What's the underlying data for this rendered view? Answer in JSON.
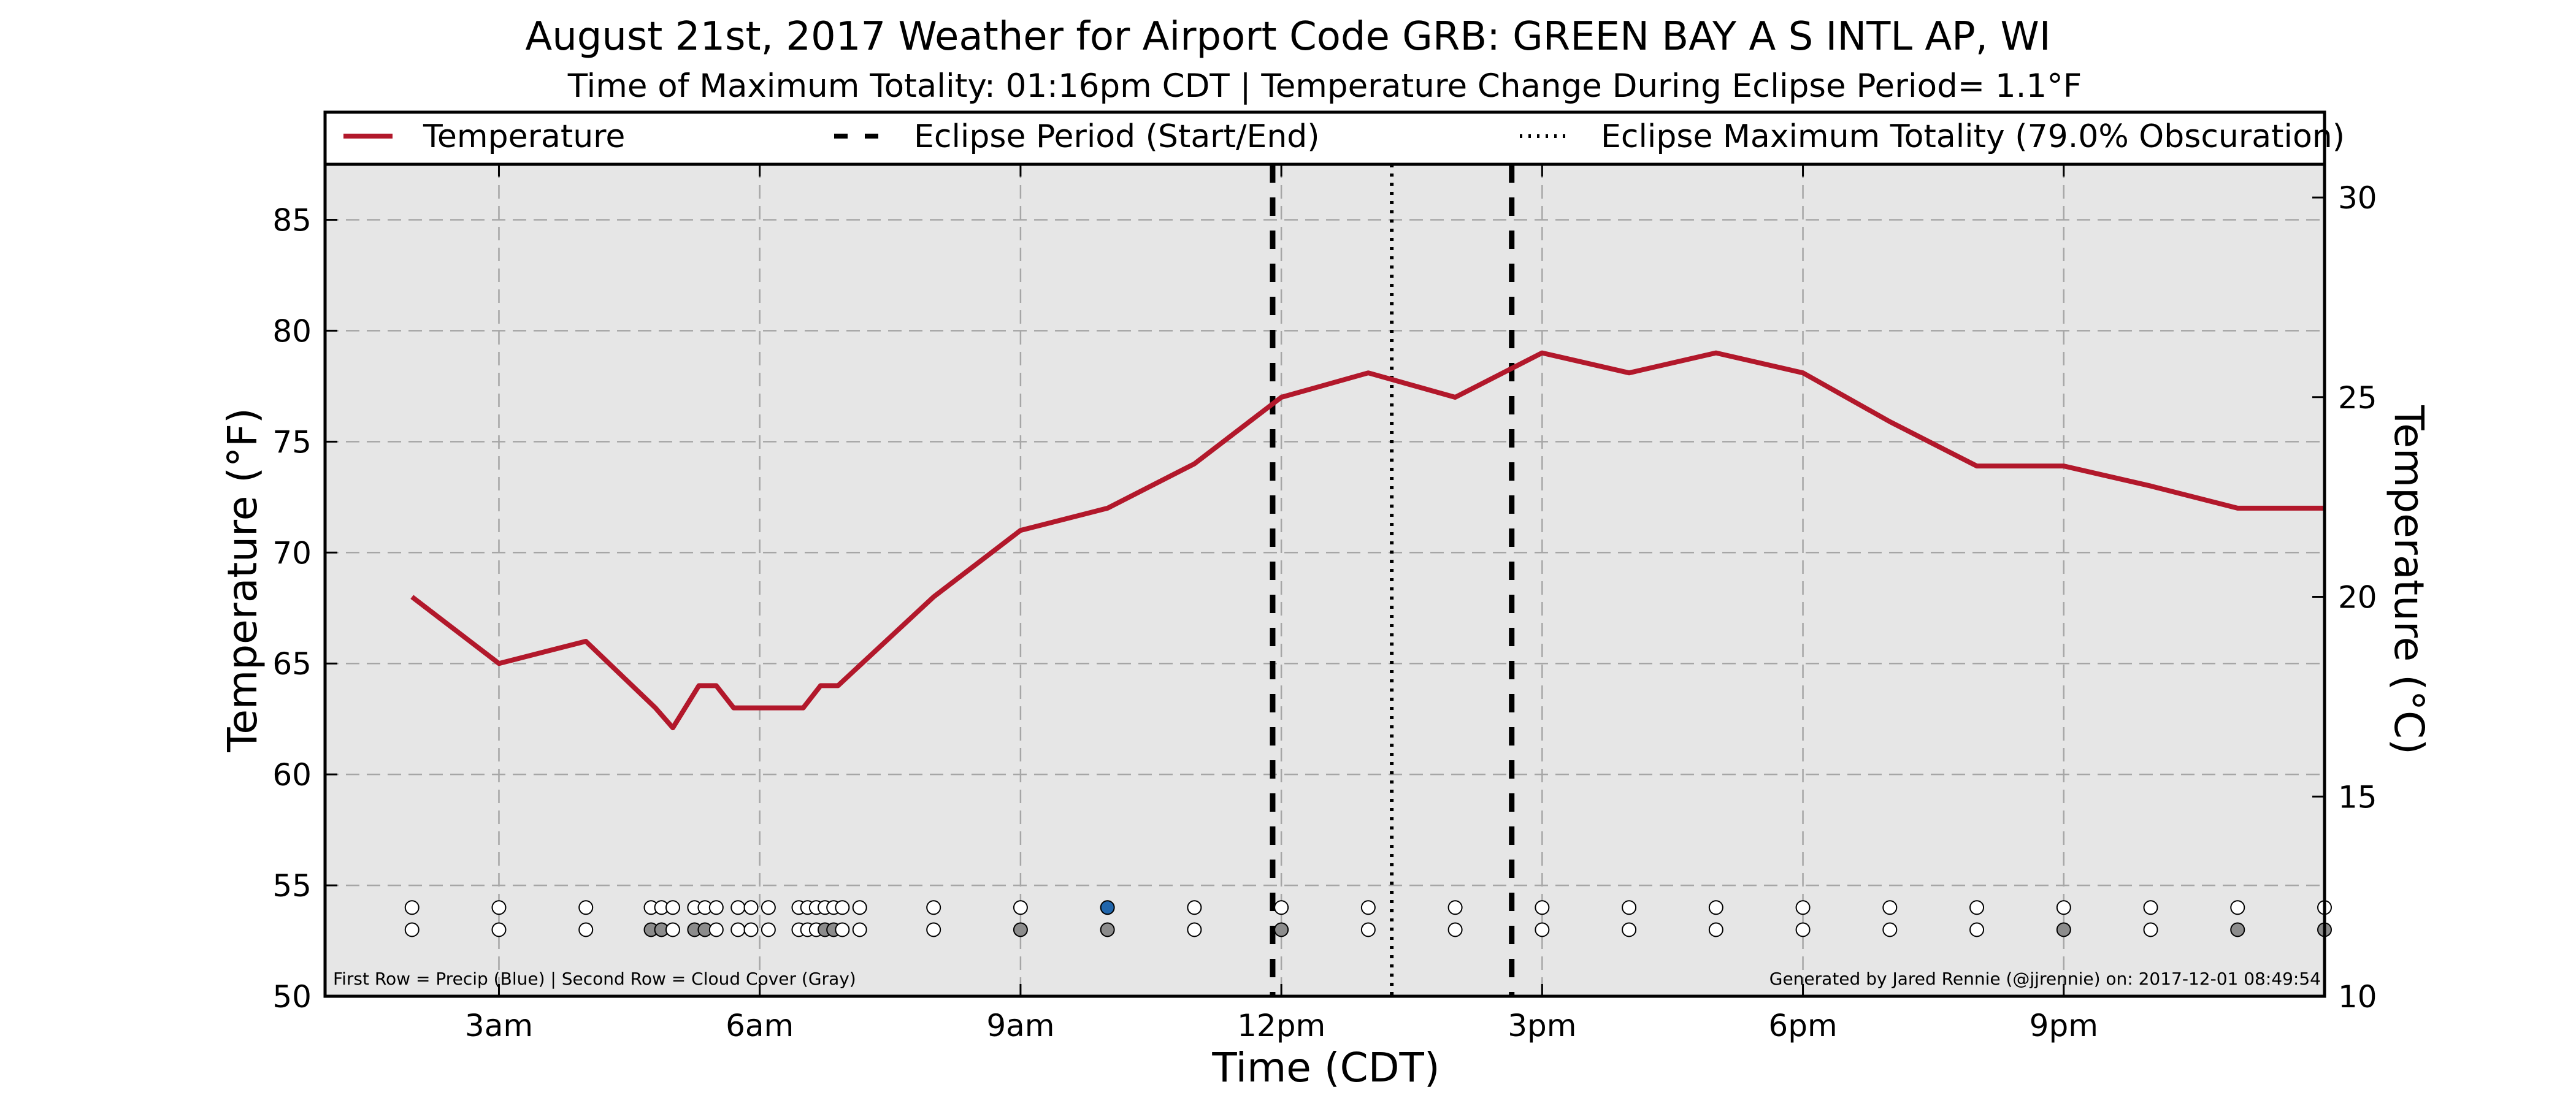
{
  "chart_data": {
    "type": "line",
    "title": "August 21st, 2017 Weather for Airport Code GRB: GREEN BAY A S INTL AP, WI",
    "subtitle": "Time of Maximum Totality: 01:16pm CDT | Temperature Change During Eclipse Period= 1.1°F",
    "xlabel": "Time (CDT)",
    "ylabel": "Temperature (°F)",
    "ylabel_right": "Temperature (°C)",
    "x_unit": "hours after midnight CDT, Aug 21 2017",
    "xlim": [
      1.0,
      24.0
    ],
    "ylim": [
      50,
      87.5
    ],
    "ylim_right_c": [
      10,
      30.83
    ],
    "grid": true,
    "legend_position": "top",
    "x_ticks": [
      {
        "value": 3,
        "label": "3am"
      },
      {
        "value": 6,
        "label": "6am"
      },
      {
        "value": 9,
        "label": "9am"
      },
      {
        "value": 12,
        "label": "12pm"
      },
      {
        "value": 15,
        "label": "3pm"
      },
      {
        "value": 18,
        "label": "6pm"
      },
      {
        "value": 21,
        "label": "9pm"
      }
    ],
    "y_ticks": [
      50,
      55,
      60,
      65,
      70,
      75,
      80,
      85
    ],
    "y_ticks_right": [
      10,
      15,
      20,
      25,
      30
    ],
    "series": [
      {
        "name": "Temperature",
        "color": "#b2182b",
        "x": [
          2.0,
          3.0,
          4.0,
          4.8,
          5.0,
          5.3,
          5.5,
          5.7,
          6.0,
          6.5,
          6.7,
          6.9,
          8.0,
          9.0,
          10.0,
          11.0,
          12.0,
          13.0,
          14.0,
          15.0,
          16.0,
          17.0,
          18.0,
          19.0,
          20.0,
          21.0,
          22.0,
          23.0,
          24.0
        ],
        "y": [
          68.0,
          65.0,
          66.0,
          63.0,
          62.1,
          64.0,
          64.0,
          63.0,
          63.0,
          63.0,
          64.0,
          64.0,
          68.0,
          71.0,
          72.0,
          74.0,
          77.0,
          78.1,
          77.0,
          79.0,
          78.1,
          79.0,
          78.1,
          75.9,
          73.9,
          73.9,
          73.0,
          72.0,
          72.0
        ]
      }
    ],
    "eclipse_lines": [
      {
        "name": "Eclipse Period (Start/End)",
        "style": "dashed",
        "x": [
          11.9,
          14.65
        ]
      },
      {
        "name": "Eclipse Maximum Totality (79.0% Obscuration)",
        "style": "dotted",
        "x": [
          13.27
        ]
      }
    ],
    "precip_row": {
      "y": 54.0,
      "x": [
        2.0,
        3.0,
        4.0,
        4.75,
        4.87,
        5.0,
        5.25,
        5.37,
        5.5,
        5.75,
        5.9,
        6.1,
        6.45,
        6.55,
        6.65,
        6.75,
        6.85,
        6.95,
        7.15,
        8.0,
        9.0,
        10.0,
        11.0,
        12.0,
        13.0,
        14.0,
        15.0,
        16.0,
        17.0,
        18.0,
        19.0,
        20.0,
        21.0,
        22.0,
        23.0,
        24.0
      ],
      "filled": [
        false,
        false,
        false,
        false,
        false,
        false,
        false,
        false,
        false,
        false,
        false,
        false,
        false,
        false,
        false,
        false,
        false,
        false,
        false,
        false,
        false,
        true,
        false,
        false,
        false,
        false,
        false,
        false,
        false,
        false,
        false,
        false,
        false,
        false,
        false,
        false
      ],
      "color_filled": "#2166ac"
    },
    "cloud_row": {
      "y": 53.0,
      "x": [
        2.0,
        3.0,
        4.0,
        4.75,
        4.87,
        5.0,
        5.25,
        5.37,
        5.5,
        5.75,
        5.9,
        6.1,
        6.45,
        6.55,
        6.65,
        6.75,
        6.85,
        6.95,
        7.15,
        8.0,
        9.0,
        10.0,
        11.0,
        12.0,
        13.0,
        14.0,
        15.0,
        16.0,
        17.0,
        18.0,
        19.0,
        20.0,
        21.0,
        22.0,
        23.0,
        24.0
      ],
      "filled": [
        false,
        false,
        false,
        true,
        true,
        false,
        true,
        true,
        false,
        false,
        false,
        false,
        false,
        false,
        false,
        true,
        true,
        false,
        false,
        false,
        true,
        true,
        false,
        true,
        false,
        false,
        false,
        false,
        false,
        false,
        false,
        false,
        true,
        false,
        true,
        true
      ],
      "color_filled": "#8c8c8c"
    },
    "legend": [
      {
        "label": "Temperature",
        "style": "solid",
        "color": "#b2182b"
      },
      {
        "label": "Eclipse Period (Start/End)",
        "style": "dashed",
        "color": "#000000"
      },
      {
        "label": "Eclipse Maximum Totality (79.0% Obscuration)",
        "style": "dotted",
        "color": "#000000"
      }
    ],
    "footnote_left": "First Row = Precip (Blue) | Second Row = Cloud Cover (Gray)",
    "footnote_right": "Generated by Jared Rennie (@jjrennie) on: 2017-12-01 08:49:54"
  }
}
